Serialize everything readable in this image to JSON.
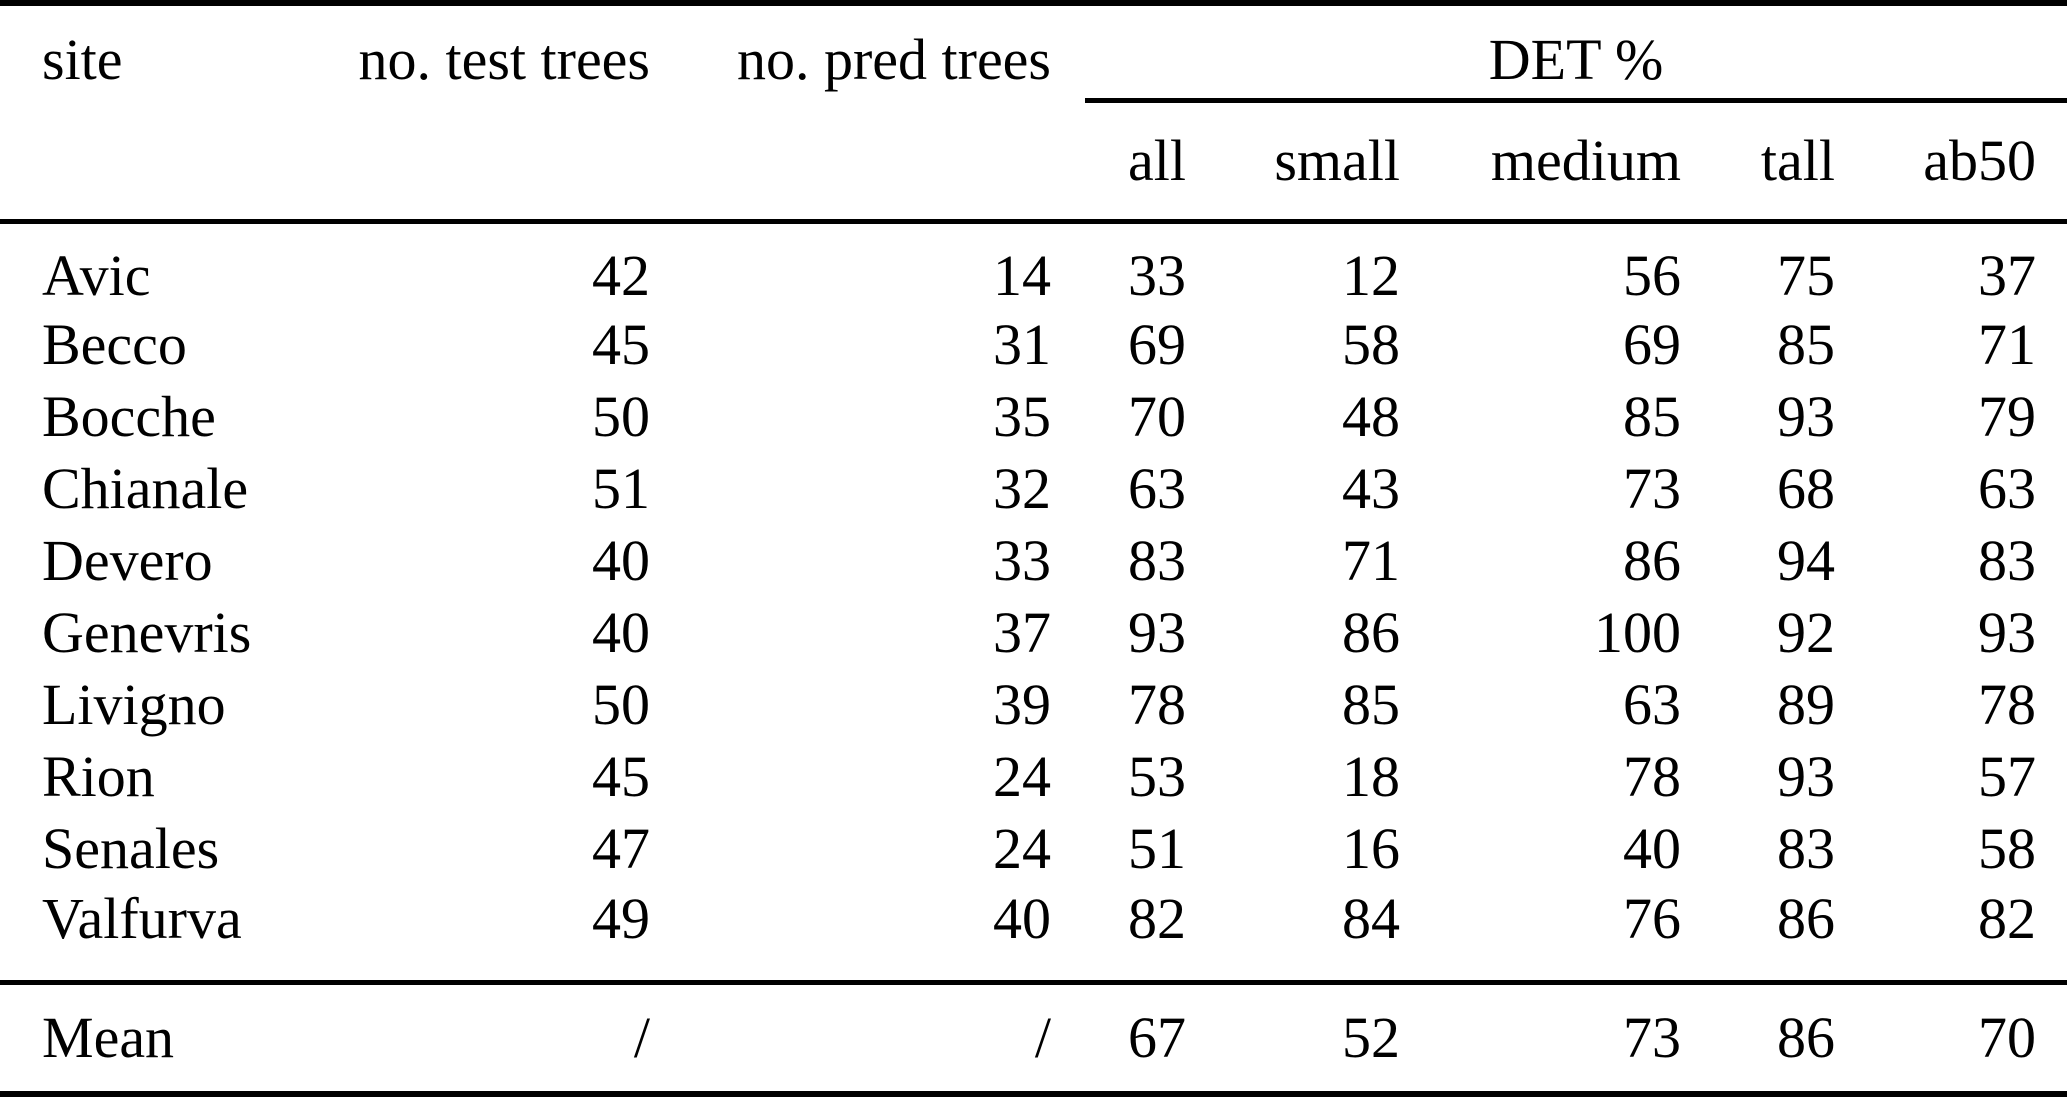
{
  "table": {
    "header": {
      "site": "site",
      "test_trees": "no. test trees",
      "pred_trees": "no. pred trees",
      "det_group": "DET %",
      "det_sub": [
        "all",
        "small",
        "medium",
        "tall",
        "ab50"
      ]
    },
    "rows": [
      [
        "Avic",
        "42",
        "14",
        "33",
        "12",
        "56",
        "75",
        "37"
      ],
      [
        "Becco",
        "45",
        "31",
        "69",
        "58",
        "69",
        "85",
        "71"
      ],
      [
        "Bocche",
        "50",
        "35",
        "70",
        "48",
        "85",
        "93",
        "79"
      ],
      [
        "Chianale",
        "51",
        "32",
        "63",
        "43",
        "73",
        "68",
        "63"
      ],
      [
        "Devero",
        "40",
        "33",
        "83",
        "71",
        "86",
        "94",
        "83"
      ],
      [
        "Genevris",
        "40",
        "37",
        "93",
        "86",
        "100",
        "92",
        "93"
      ],
      [
        "Livigno",
        "50",
        "39",
        "78",
        "85",
        "63",
        "89",
        "78"
      ],
      [
        "Rion",
        "45",
        "24",
        "53",
        "18",
        "78",
        "93",
        "57"
      ],
      [
        "Senales",
        "47",
        "24",
        "51",
        "16",
        "40",
        "83",
        "58"
      ],
      [
        "Valfurva",
        "49",
        "40",
        "82",
        "84",
        "76",
        "86",
        "82"
      ]
    ],
    "mean": [
      "Mean",
      "/",
      "/",
      "67",
      "52",
      "73",
      "86",
      "70"
    ]
  },
  "colors": {
    "text": "#000000",
    "background": "#ffffff",
    "rule": "#000000"
  }
}
